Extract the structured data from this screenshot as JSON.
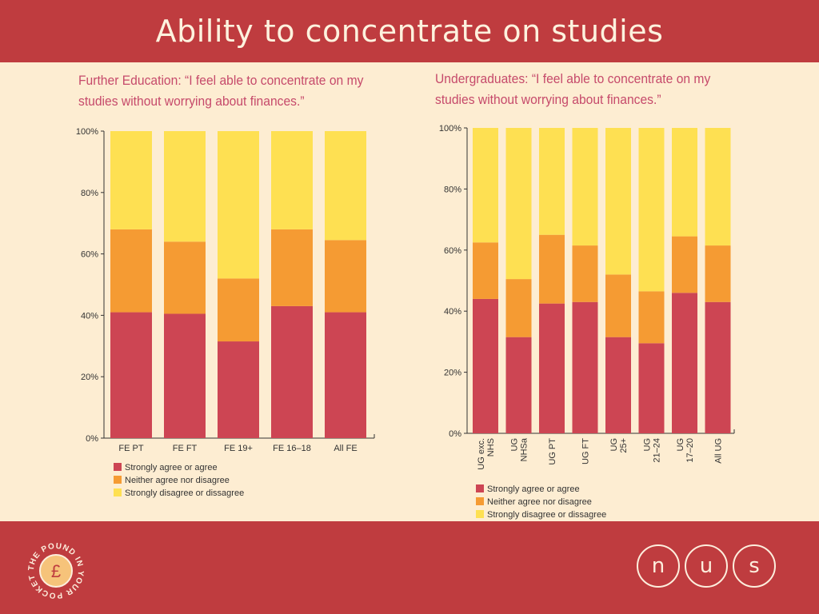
{
  "slide": {
    "title": "Ability to concentrate on studies"
  },
  "colors": {
    "header": "#bf3c3f",
    "background": "#fdedd2",
    "agree": "#cd4553",
    "neither": "#f59b33",
    "disagree": "#fee052"
  },
  "legend": [
    {
      "label": "Strongly agree or agree",
      "color": "#cd4553"
    },
    {
      "label": "Neither agree nor disagree",
      "color": "#f59b33"
    },
    {
      "label": "Strongly disagree or dissagree",
      "color": "#fee052"
    }
  ],
  "chart_data": [
    {
      "type": "bar",
      "stacked": true,
      "title": "Further Education: “I feel able to concentrate on my studies without worrying about finances.”",
      "categories": [
        "FE PT",
        "FE FT",
        "FE 19+",
        "FE 16–18",
        "All FE"
      ],
      "series": [
        {
          "name": "Strongly agree or agree",
          "values": [
            41,
            40.5,
            31.5,
            43,
            41
          ]
        },
        {
          "name": "Neither agree nor disagree",
          "values": [
            27,
            23.5,
            20.5,
            25,
            23.5
          ]
        },
        {
          "name": "Strongly disagree or dissagree",
          "values": [
            32,
            36,
            48,
            32,
            35.5
          ]
        }
      ],
      "ylim": [
        0,
        100
      ],
      "yticks": [
        "0%",
        "20%",
        "40%",
        "60%",
        "80%",
        "100%"
      ],
      "legend_position": "bottom-left"
    },
    {
      "type": "bar",
      "stacked": true,
      "title": "Undergraduates: “I feel able to concentrate on my studies without worrying about finances.”",
      "categories": [
        "UG exc. NHS",
        "UG NHSa",
        "UG PT",
        "UG FT",
        "UG 25+",
        "UG 21–24",
        "UG 17–20",
        "All UG"
      ],
      "series": [
        {
          "name": "Strongly agree or agree",
          "values": [
            44,
            31.5,
            42.5,
            43,
            31.5,
            29.5,
            46,
            43
          ]
        },
        {
          "name": "Neither agree nor disagree",
          "values": [
            18.5,
            19,
            22.5,
            18.5,
            20.5,
            17,
            18.5,
            18.5
          ]
        },
        {
          "name": "Strongly disagree or dissagree",
          "values": [
            37.5,
            49.5,
            35,
            38.5,
            48,
            53.5,
            35.5,
            38.5
          ]
        }
      ],
      "ylim": [
        0,
        100
      ],
      "yticks": [
        "0%",
        "20%",
        "40%",
        "60%",
        "80%",
        "100%"
      ],
      "legend_position": "bottom-left"
    }
  ],
  "logos": {
    "left_ring_text": "THE POUND IN YOUR POCKET",
    "left_symbol": "£",
    "right_letters": [
      "n",
      "u",
      "s"
    ]
  }
}
